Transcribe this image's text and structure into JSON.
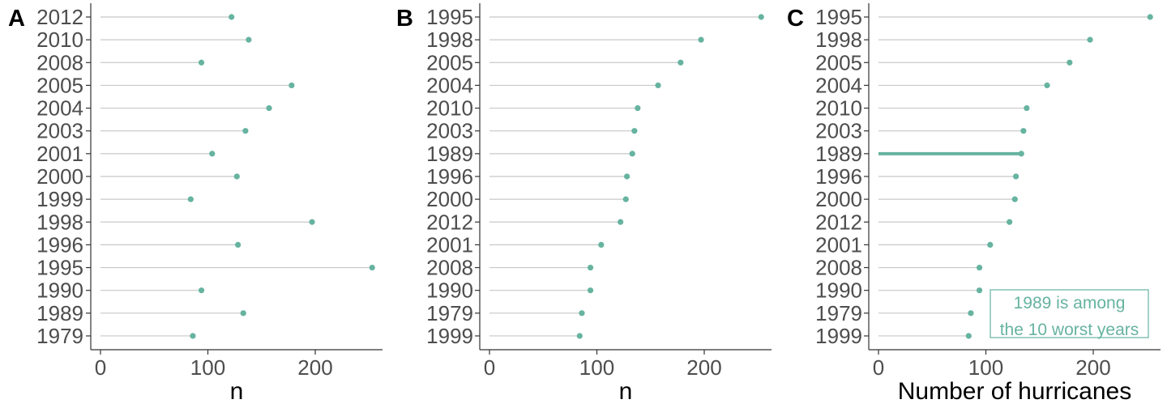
{
  "colors": {
    "point": "#66b3a0",
    "stem": "#c8c8c8",
    "highlight": "#66b3a0",
    "axis": "#333333",
    "text": "#4d4d4d"
  },
  "chart_data": [
    {
      "type": "lollipop",
      "panel_tag": "A",
      "xlabel": "n",
      "xlim": [
        0,
        262
      ],
      "xticks": [
        0,
        100,
        200
      ],
      "grid": false,
      "categories": [
        "2012",
        "2010",
        "2008",
        "2005",
        "2004",
        "2003",
        "2001",
        "2000",
        "1999",
        "1998",
        "1996",
        "1995",
        "1990",
        "1989",
        "1979"
      ],
      "values": [
        122,
        138,
        94,
        178,
        157,
        135,
        104,
        127,
        84,
        197,
        128,
        253,
        94,
        133,
        86
      ]
    },
    {
      "type": "lollipop",
      "panel_tag": "B",
      "xlabel": "n",
      "xlim": [
        0,
        262
      ],
      "xticks": [
        0,
        100,
        200
      ],
      "grid": false,
      "categories": [
        "1995",
        "1998",
        "2005",
        "2004",
        "2010",
        "2003",
        "1989",
        "1996",
        "2000",
        "2012",
        "2001",
        "2008",
        "1990",
        "1979",
        "1999"
      ],
      "values": [
        253,
        197,
        178,
        157,
        138,
        135,
        133,
        128,
        127,
        122,
        104,
        94,
        94,
        86,
        84
      ]
    },
    {
      "type": "lollipop",
      "panel_tag": "C",
      "xlabel": "Number of hurricanes",
      "xlim": [
        0,
        262
      ],
      "xticks": [
        0,
        100,
        200
      ],
      "grid": false,
      "categories": [
        "1995",
        "1998",
        "2005",
        "2004",
        "2010",
        "2003",
        "1989",
        "1996",
        "2000",
        "2012",
        "2001",
        "2008",
        "1990",
        "1979",
        "1999"
      ],
      "values": [
        253,
        197,
        178,
        157,
        138,
        135,
        133,
        128,
        127,
        122,
        104,
        94,
        94,
        86,
        84
      ],
      "highlight": "1989",
      "annotation": [
        "1989 is among",
        "the 10 worst years"
      ]
    }
  ]
}
